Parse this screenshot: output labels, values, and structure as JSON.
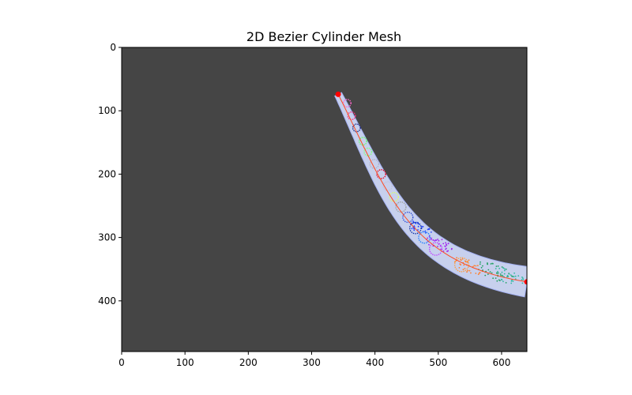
{
  "chart_data": {
    "type": "scatter",
    "title": "2D Bezier Cylinder Mesh",
    "xlabel": "",
    "ylabel": "",
    "xlim": [
      0,
      640
    ],
    "ylim": [
      480,
      0
    ],
    "y_inverted": true,
    "background_color": "#454545",
    "x_ticks": [
      0,
      100,
      200,
      300,
      400,
      500,
      600
    ],
    "y_ticks": [
      0,
      100,
      200,
      300,
      400
    ],
    "grid": false,
    "centerline": {
      "color": "#ff4a1f",
      "control_points": [
        [
          342,
          74
        ],
        [
          420,
          230
        ],
        [
          450,
          340
        ],
        [
          640,
          370
        ]
      ],
      "endpoint_color": "#ff0000"
    },
    "tube": {
      "fill_color": "#cfd8f7",
      "edge_color": "#aab8ff",
      "start_radius": 6,
      "end_radius": 24
    },
    "circles": [
      {
        "x": 356,
        "y": 88,
        "r": 6,
        "color": "#ff66cc"
      },
      {
        "x": 363,
        "y": 108,
        "r": 6,
        "color": "#ff2e7a"
      },
      {
        "x": 371,
        "y": 127,
        "r": 6,
        "color": "#1a237e"
      },
      {
        "x": 381,
        "y": 148,
        "r": 6,
        "color": "#66ff66"
      },
      {
        "x": 389,
        "y": 165,
        "r": 6,
        "color": "#7fff7f"
      },
      {
        "x": 399,
        "y": 184,
        "r": 7,
        "color": "#b0b0c8"
      },
      {
        "x": 410,
        "y": 200,
        "r": 7,
        "color": "#e8001c"
      },
      {
        "x": 420,
        "y": 219,
        "r": 7,
        "color": "#c0c0d8"
      },
      {
        "x": 430,
        "y": 236,
        "r": 7,
        "color": "#d8ff66"
      },
      {
        "x": 441,
        "y": 252,
        "r": 8,
        "color": "#9aa0a0"
      },
      {
        "x": 452,
        "y": 268,
        "r": 8,
        "color": "#2f4fd6"
      },
      {
        "x": 464,
        "y": 285,
        "r": 9,
        "color": "#0b2fa8"
      },
      {
        "x": 478,
        "y": 300,
        "r": 9,
        "color": "#1f7fff"
      },
      {
        "x": 496,
        "y": 318,
        "r": 10,
        "color": "#c040ff"
      },
      {
        "x": 537,
        "y": 343,
        "r": 11,
        "color": "#ff9f40"
      }
    ],
    "scatter_clusters": [
      {
        "cx": 470,
        "cy": 285,
        "spread": 14,
        "count": 30,
        "color": "#1f3fff"
      },
      {
        "cx": 500,
        "cy": 310,
        "spread": 16,
        "count": 36,
        "color": "#a020f0"
      },
      {
        "cx": 545,
        "cy": 345,
        "spread": 18,
        "count": 34,
        "color": "#ff7f2a"
      },
      {
        "cx": 590,
        "cy": 355,
        "spread": 22,
        "count": 44,
        "color": "#20a060"
      },
      {
        "cx": 612,
        "cy": 362,
        "spread": 20,
        "count": 30,
        "color": "#2fb8a0"
      }
    ]
  }
}
